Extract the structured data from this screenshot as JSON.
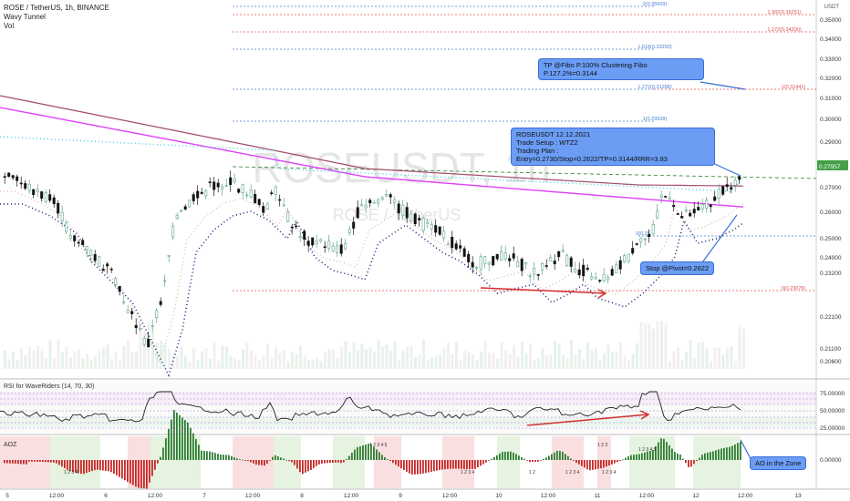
{
  "header": {
    "symbol": "ROSE / TetherUS, 1h, BINANCE",
    "line2": "Wavy Tunnel",
    "line3": "Vol"
  },
  "watermark": {
    "main": "ROSEUSDT, 1h",
    "sub": "ROSE / TetherUS"
  },
  "annotations": {
    "tp": "TP @Fibo P.100% Clustering Fibo P.127.2%=0.3144",
    "plan_title": "ROSEUSDT 12.12.2021",
    "plan_setup": "Trade Setup : WTZ2",
    "plan_detail": "Trading Plan : Entry=0.2730/Stop=0.2622/TP=0.3144/RRR=3.83",
    "stop": "Stop @Pivot=0.2622",
    "ao": "AO in the Zone"
  },
  "rsi_label": "RSI for WaveRiders (14, 70, 30)",
  "ao_label": "AOZ",
  "currency": "USDT",
  "colors": {
    "up": "#26a69a",
    "down": "#111111",
    "accent": "#3a6fd8",
    "fibred": "#e05050",
    "magenta": "#e040fb",
    "cyan": "#4dd0e1",
    "navy": "#1a237e"
  },
  "chart_data": {
    "type": "candlestick",
    "price_axis": {
      "ticks": [
        "0.35000",
        "0.34000",
        "0.33000",
        "0.32000",
        "0.31000",
        "0.30000",
        "0.29000",
        "0.27957",
        "0.27000",
        "0.26000",
        "0.25000",
        "0.24000",
        "0.23200",
        "0.22100",
        "0.21100",
        "0.20600"
      ]
    },
    "rsi_axis": {
      "ticks": [
        "75.00000",
        "50.00000",
        "25.00000"
      ]
    },
    "ao_axis": {
      "ticks": [
        "0.00000"
      ]
    },
    "x_ticks": [
      "5",
      "12:00",
      "6",
      "12:00",
      "7",
      "12:00",
      "8",
      "12:00",
      "9",
      "12:00",
      "10",
      "12:00",
      "11",
      "12:00",
      "12",
      "12:00",
      "13"
    ],
    "last_price": "0.27957",
    "fib_levels": [
      {
        "label": "2(0.35659)",
        "color": "blue"
      },
      {
        "label": "1.382(0.35251)",
        "color": "red"
      },
      {
        "label": "1.272(0.34200)",
        "color": "red"
      },
      {
        "label": "1.618(0.33250)",
        "color": "blue"
      },
      {
        "label": "1.272(0.31288)",
        "color": "blue"
      },
      {
        "label": "1(0.31441)",
        "color": "red"
      },
      {
        "label": "1(0.29928)",
        "color": "blue"
      },
      {
        "label": "0(0.25",
        "color": "blue"
      },
      {
        "label": "0(0.23078)",
        "color": "red"
      }
    ],
    "ao_counts": [
      "1 2 3 4",
      "1 2 3 4 5",
      "1 2",
      "1 2 3 4",
      "1 2 3 4",
      "1 2 3 4",
      "1 2 3",
      "1 2 3 4 5"
    ]
  }
}
